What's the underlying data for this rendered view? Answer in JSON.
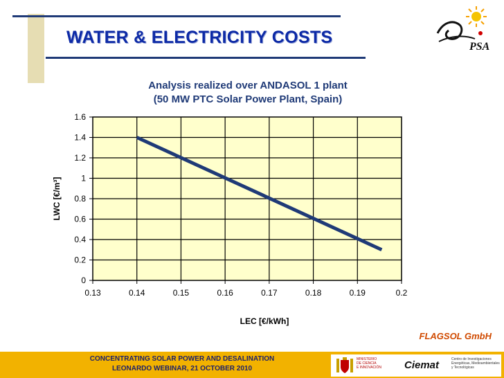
{
  "slide": {
    "title": "WATER & ELECTRICITY COSTS",
    "credit": "FLAGSOL GmbH",
    "footer_line1": "CONCENTRATING SOLAR POWER AND DESALINATION",
    "footer_line2": "LEONARDO WEBINAR, 21 OCTOBER 2010",
    "logo_psa": "PSA",
    "ministry_line1": "MINISTERIO",
    "ministry_line2": "DE CIENCIA",
    "ministry_line3": "E INNOVACIÓN",
    "ciemat": "Ciemat",
    "ciemat_line1": "Centro de Investigaciones",
    "ciemat_line2": "Energéticas, Medioambientales",
    "ciemat_line3": "y Tecnológicas"
  },
  "chart_data": {
    "type": "line",
    "title_line1": "Analysis realized over ANDASOL 1 plant",
    "title_line2": "(50 MW PTC Solar Power Plant, Spain)",
    "xlabel": "LEC [€/kWh]",
    "ylabel": "LWC [€/m³]",
    "xlim": [
      0.13,
      0.2
    ],
    "ylim": [
      0,
      1.6
    ],
    "x_ticks": [
      "0.13",
      "0.14",
      "0.15",
      "0.16",
      "0.17",
      "0.18",
      "0.19",
      "0.2"
    ],
    "y_ticks": [
      "0",
      "0.2",
      "0.4",
      "0.6",
      "0.8",
      "1",
      "1.2",
      "1.4",
      "1.6"
    ],
    "grid": true,
    "plot_background": "#ffffcc",
    "line_color": "#1f3a77",
    "series": [
      {
        "x": [
          0.14,
          0.1955
        ],
        "y": [
          1.4,
          0.3
        ]
      }
    ]
  },
  "colors": {
    "title": "#0d2aa6",
    "footer": "#f2b200",
    "credit": "#d04a00"
  }
}
